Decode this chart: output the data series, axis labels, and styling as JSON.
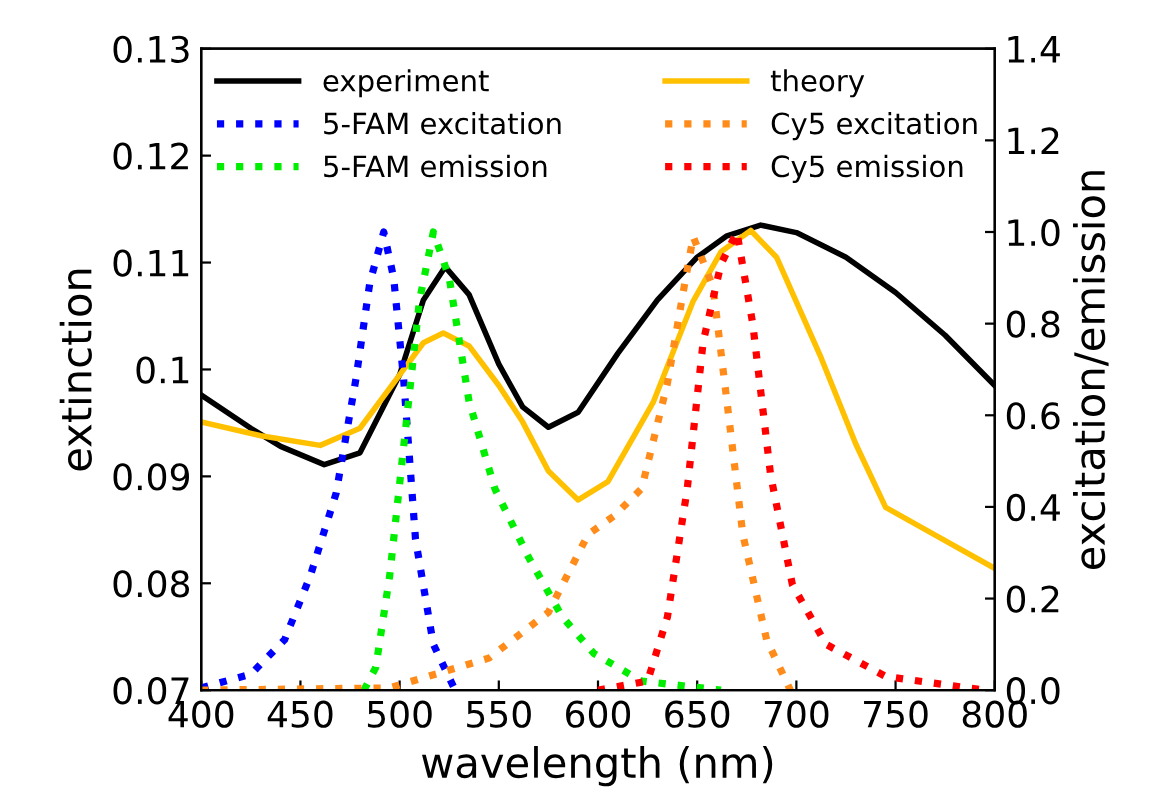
{
  "chart_data": {
    "type": "line",
    "xlabel": "wavelength (nm)",
    "ylabel": "extinction",
    "y2label": "excitation/emission",
    "xlim": [
      400,
      800
    ],
    "xticks": [
      400,
      450,
      500,
      550,
      600,
      650,
      700,
      750,
      800
    ],
    "ylim": [
      0.07,
      0.13
    ],
    "yticks": [
      0.07,
      0.08,
      0.09,
      0.1,
      0.11,
      0.12,
      0.13
    ],
    "y2lim": [
      0,
      1.4
    ],
    "y2ticks": [
      {
        "value": 0,
        "label": "0.0"
      },
      {
        "value": 0.2,
        "label": "0.2"
      },
      {
        "value": 0.4,
        "label": "0.4"
      },
      {
        "value": 0.6,
        "label": "0.6"
      },
      {
        "value": 0.8,
        "label": "0.8"
      },
      {
        "value": 1.0,
        "label": "1.0"
      },
      {
        "value": 1.2,
        "label": "1.2"
      },
      {
        "value": 1.4,
        "label": "1.4"
      }
    ],
    "legend": "top",
    "grid": false,
    "marker": "none",
    "series": [
      {
        "name": "experiment",
        "color": "#000000",
        "line_style": "solid",
        "x": [
          400,
          425,
          440,
          462,
          480,
          500,
          512,
          523,
          535,
          550,
          562,
          575,
          590,
          610,
          630,
          650,
          665,
          682,
          700,
          725,
          750,
          775,
          800
        ],
        "values": [
          0.0976,
          0.0945,
          0.0928,
          0.0911,
          0.0922,
          0.0995,
          0.1065,
          0.1096,
          0.107,
          0.1005,
          0.0965,
          0.0946,
          0.096,
          0.1015,
          0.1065,
          0.1105,
          0.1125,
          0.1135,
          0.1128,
          0.1105,
          0.1072,
          0.1032,
          0.0985
        ]
      },
      {
        "name": "5-FAM excitation",
        "color": "#0000ff",
        "line_style": "dotted",
        "axis": "y2",
        "x": [
          400,
          425,
          442,
          455,
          468,
          478,
          485,
          492,
          497,
          502,
          508,
          517,
          528
        ],
        "values": [
          0.005,
          0.035,
          0.11,
          0.25,
          0.43,
          0.68,
          0.89,
          1.0,
          0.9,
          0.68,
          0.33,
          0.1,
          0.0
        ]
      },
      {
        "name": "5-FAM emission",
        "color": "#00ee00",
        "line_style": "dotted",
        "axis": "y2",
        "x": [
          482,
          488,
          495,
          502,
          510,
          517,
          525,
          535,
          548,
          565,
          582,
          598,
          622,
          662
        ],
        "values": [
          0.0,
          0.05,
          0.25,
          0.53,
          0.85,
          1.0,
          0.9,
          0.63,
          0.44,
          0.29,
          0.16,
          0.08,
          0.02,
          0.0
        ]
      },
      {
        "name": "theory",
        "color": "#ffc000",
        "line_style": "solid",
        "x": [
          400,
          430,
          460,
          480,
          500,
          512,
          522,
          535,
          550,
          562,
          575,
          590,
          605,
          628,
          648,
          662,
          677,
          690,
          712,
          730,
          745,
          770,
          800
        ],
        "values": [
          0.0951,
          0.0938,
          0.0929,
          0.0945,
          0.0995,
          0.1025,
          0.1034,
          0.1022,
          0.0985,
          0.0951,
          0.0905,
          0.0878,
          0.0895,
          0.097,
          0.1064,
          0.111,
          0.113,
          0.1105,
          0.1013,
          0.093,
          0.0871,
          0.0845,
          0.0814
        ]
      },
      {
        "name": "Cy5 excitation",
        "color": "#ff8c1a",
        "line_style": "dotted",
        "axis": "y2",
        "x": [
          400,
          495,
          545,
          575,
          595,
          608,
          622,
          635,
          643,
          648,
          658,
          665,
          673,
          685,
          697
        ],
        "values": [
          0.0,
          0.005,
          0.07,
          0.17,
          0.34,
          0.38,
          0.44,
          0.67,
          0.87,
          0.99,
          0.88,
          0.63,
          0.34,
          0.11,
          0.0
        ]
      },
      {
        "name": "Cy5 emission",
        "color": "#ff0000",
        "line_style": "dotted",
        "axis": "y2",
        "x": [
          600,
          625,
          635,
          645,
          653,
          662,
          670,
          678,
          687,
          698,
          715,
          745,
          795
        ],
        "values": [
          0.0,
          0.02,
          0.16,
          0.44,
          0.76,
          0.93,
          1.0,
          0.8,
          0.47,
          0.23,
          0.1,
          0.03,
          0.0
        ]
      }
    ]
  }
}
